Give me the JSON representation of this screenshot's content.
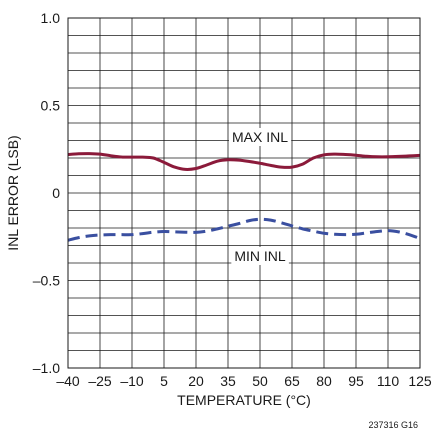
{
  "chart_data": {
    "type": "line",
    "xlabel": "TEMPERATURE (°C)",
    "ylabel": "INL ERROR (LSB)",
    "xlim": [
      -40,
      125
    ],
    "ylim": [
      -1.0,
      1.0
    ],
    "x_ticks": [
      -40,
      -25,
      -10,
      5,
      20,
      35,
      50,
      65,
      80,
      95,
      110,
      125
    ],
    "x_tick_labels": [
      "–40",
      "–25",
      "–10",
      "5",
      "20",
      "35",
      "50",
      "65",
      "80",
      "95",
      "110",
      "125"
    ],
    "y_ticks": [
      1.0,
      0.5,
      0,
      -0.5,
      -1.0
    ],
    "y_tick_labels": [
      "1.0",
      "0.5",
      "0",
      "–0.5",
      "–1.0"
    ],
    "grid": true,
    "legend": "none",
    "series": [
      {
        "name": "MAX INL",
        "color": "#8b1a3a",
        "style": "solid",
        "x": [
          -40,
          -35,
          -30,
          -25,
          -20,
          -15,
          -10,
          -5,
          0,
          5,
          10,
          15,
          20,
          25,
          30,
          35,
          40,
          45,
          50,
          55,
          60,
          65,
          70,
          75,
          80,
          85,
          90,
          95,
          100,
          105,
          110,
          115,
          120,
          125
        ],
        "y": [
          0.22,
          0.224,
          0.225,
          0.222,
          0.213,
          0.206,
          0.205,
          0.205,
          0.2,
          0.175,
          0.148,
          0.135,
          0.14,
          0.16,
          0.182,
          0.19,
          0.188,
          0.18,
          0.17,
          0.158,
          0.148,
          0.148,
          0.165,
          0.2,
          0.218,
          0.222,
          0.22,
          0.216,
          0.21,
          0.207,
          0.207,
          0.209,
          0.212,
          0.215
        ]
      },
      {
        "name": "MIN INL",
        "color": "#3a4fa0",
        "style": "dashed",
        "x": [
          -40,
          -35,
          -30,
          -25,
          -20,
          -15,
          -10,
          -5,
          0,
          5,
          10,
          15,
          20,
          25,
          30,
          35,
          40,
          45,
          50,
          55,
          60,
          65,
          70,
          75,
          80,
          85,
          90,
          95,
          100,
          105,
          110,
          115,
          120,
          125
        ],
        "y": [
          -0.27,
          -0.255,
          -0.245,
          -0.24,
          -0.238,
          -0.238,
          -0.238,
          -0.232,
          -0.224,
          -0.22,
          -0.222,
          -0.224,
          -0.225,
          -0.218,
          -0.205,
          -0.19,
          -0.175,
          -0.158,
          -0.15,
          -0.155,
          -0.17,
          -0.188,
          -0.205,
          -0.218,
          -0.23,
          -0.236,
          -0.238,
          -0.236,
          -0.228,
          -0.22,
          -0.215,
          -0.222,
          -0.238,
          -0.26
        ]
      }
    ],
    "annotations": [
      {
        "text": "MAX INL",
        "x": 50,
        "y": 0.32
      },
      {
        "text": "MIN INL",
        "x": 50,
        "y": -0.36
      }
    ],
    "figure_id": "237316 G16"
  }
}
